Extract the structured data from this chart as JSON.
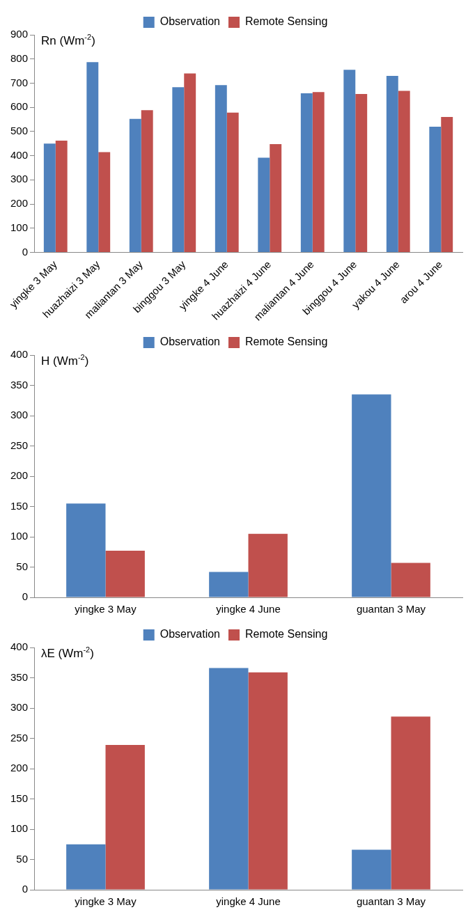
{
  "chart_data": [
    {
      "type": "bar",
      "title": "Rn (Wm$^{-2}$)",
      "categories": [
        "yingke 3 May",
        "huazhaizi 3 May",
        "maliantan 3 May",
        "binggou 3 May",
        "yingke 4 June",
        "huazhaizi 4 June",
        "maliantan 4 June",
        "binggou 4 June",
        "yakou 4 June",
        "arou 4 June"
      ],
      "series": [
        {
          "name": "Observation",
          "color": "#4f81bd",
          "values": [
            450,
            787,
            552,
            683,
            692,
            392,
            658,
            755,
            730,
            520
          ]
        },
        {
          "name": "Remote Sensing",
          "color": "#c0504d",
          "values": [
            462,
            415,
            588,
            740,
            578,
            448,
            663,
            655,
            668,
            560
          ]
        }
      ],
      "ylim": [
        0,
        900
      ],
      "yticks": [
        0,
        100,
        200,
        300,
        400,
        500,
        600,
        700,
        800,
        900
      ],
      "grid": false,
      "legend": "top"
    },
    {
      "type": "bar",
      "title": "H (Wm$^{-2}$)",
      "categories": [
        "yingke 3 May",
        "yingke 4 June",
        "guantan 3 May"
      ],
      "series": [
        {
          "name": "Observation",
          "color": "#4f81bd",
          "values": [
            155,
            42,
            335
          ]
        },
        {
          "name": "Remote Sensing",
          "color": "#c0504d",
          "values": [
            77,
            105,
            57
          ]
        }
      ],
      "ylim": [
        0,
        400
      ],
      "yticks": [
        0,
        50,
        100,
        150,
        200,
        250,
        300,
        350,
        400
      ],
      "grid": false,
      "legend": "top"
    },
    {
      "type": "bar",
      "title": "λE (Wm$^{-2}$)",
      "categories": [
        "yingke 3 May",
        "yingke 4 June",
        "guantan 3 May"
      ],
      "series": [
        {
          "name": "Observation",
          "color": "#4f81bd",
          "values": [
            75,
            366,
            66
          ]
        },
        {
          "name": "Remote Sensing",
          "color": "#c0504d",
          "values": [
            239,
            359,
            286
          ]
        }
      ],
      "ylim": [
        0,
        400
      ],
      "yticks": [
        0,
        50,
        100,
        150,
        200,
        250,
        300,
        350,
        400
      ],
      "grid": false,
      "legend": "top"
    }
  ]
}
